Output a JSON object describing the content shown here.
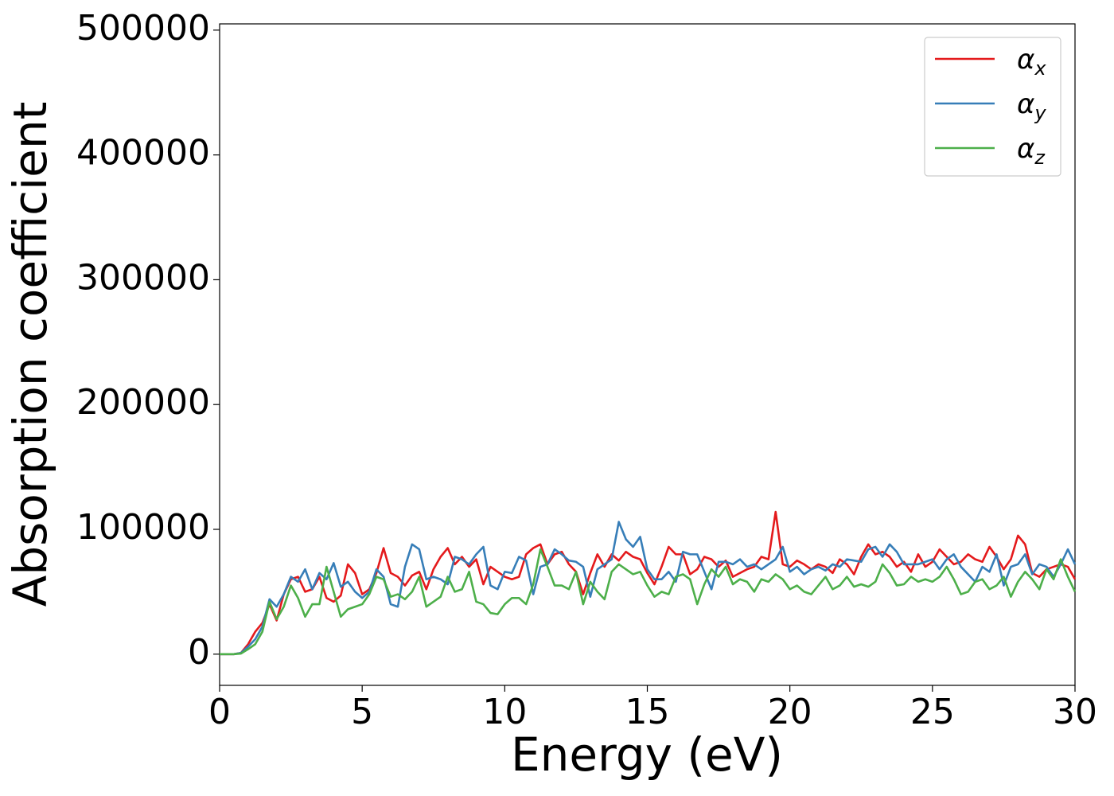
{
  "chart_data": {
    "type": "line",
    "xlabel": "Energy (eV)",
    "ylabel": "Absorption coefficient",
    "xlim": [
      0,
      30
    ],
    "ylim": [
      -25000,
      505000
    ],
    "xticks": [
      0,
      5,
      10,
      15,
      20,
      25,
      30
    ],
    "yticks": [
      0,
      100000,
      200000,
      300000,
      400000,
      500000
    ],
    "legend": "upper right",
    "grid": false,
    "x": [
      0,
      0.25,
      0.5,
      0.75,
      1,
      1.25,
      1.5,
      1.75,
      2,
      2.25,
      2.5,
      2.75,
      3,
      3.25,
      3.5,
      3.75,
      4,
      4.25,
      4.5,
      4.75,
      5,
      5.25,
      5.5,
      5.75,
      6,
      6.25,
      6.5,
      6.75,
      7,
      7.25,
      7.5,
      7.75,
      8,
      8.25,
      8.5,
      8.75,
      9,
      9.25,
      9.5,
      9.75,
      10,
      10.25,
      10.5,
      10.75,
      11,
      11.25,
      11.5,
      11.75,
      12,
      12.25,
      12.5,
      12.75,
      13,
      13.25,
      13.5,
      13.75,
      14,
      14.25,
      14.5,
      14.75,
      15,
      15.25,
      15.5,
      15.75,
      16,
      16.25,
      16.5,
      16.75,
      17,
      17.25,
      17.5,
      17.75,
      18,
      18.25,
      18.5,
      18.75,
      19,
      19.25,
      19.5,
      19.75,
      20,
      20.25,
      20.5,
      20.75,
      21,
      21.25,
      21.5,
      21.75,
      22,
      22.25,
      22.5,
      22.75,
      23,
      23.25,
      23.5,
      23.75,
      24,
      24.25,
      24.5,
      24.75,
      25,
      25.25,
      25.5,
      25.75,
      26,
      26.25,
      26.5,
      26.75,
      27,
      27.25,
      27.5,
      27.75,
      28,
      28.25,
      28.5,
      28.75,
      29,
      29.25,
      29.5,
      29.75,
      30
    ],
    "series": [
      {
        "name": "αx",
        "color": "#e41a1c",
        "values": [
          0,
          0,
          0,
          1000,
          8000,
          18000,
          25000,
          40000,
          27000,
          48000,
          60000,
          62000,
          50000,
          52000,
          62000,
          45000,
          42000,
          47000,
          72000,
          65000,
          48000,
          52000,
          65000,
          85000,
          65000,
          62000,
          55000,
          63000,
          66000,
          52000,
          68000,
          78000,
          85000,
          72000,
          78000,
          70000,
          76000,
          56000,
          70000,
          66000,
          62000,
          60000,
          62000,
          80000,
          85000,
          88000,
          72000,
          80000,
          82000,
          72000,
          66000,
          48000,
          65000,
          80000,
          70000,
          80000,
          75000,
          82000,
          78000,
          76000,
          65000,
          56000,
          70000,
          86000,
          80000,
          80000,
          64000,
          68000,
          78000,
          76000,
          70000,
          75000,
          62000,
          65000,
          68000,
          70000,
          78000,
          76000,
          114000,
          72000,
          70000,
          75000,
          72000,
          68000,
          72000,
          70000,
          65000,
          76000,
          72000,
          64000,
          78000,
          88000,
          80000,
          82000,
          78000,
          70000,
          74000,
          66000,
          80000,
          70000,
          74000,
          84000,
          78000,
          72000,
          74000,
          80000,
          76000,
          74000,
          86000,
          78000,
          68000,
          76000,
          95000,
          88000,
          65000,
          62000,
          68000,
          70000,
          72000,
          70000,
          60000
        ]
      },
      {
        "name": "αy",
        "color": "#377eb8",
        "values": [
          0,
          0,
          0,
          1000,
          6000,
          12000,
          22000,
          44000,
          38000,
          48000,
          62000,
          58000,
          68000,
          52000,
          65000,
          60000,
          73000,
          54000,
          58000,
          50000,
          45000,
          50000,
          68000,
          62000,
          40000,
          38000,
          70000,
          88000,
          84000,
          60000,
          62000,
          60000,
          56000,
          78000,
          76000,
          72000,
          80000,
          86000,
          55000,
          52000,
          66000,
          65000,
          78000,
          75000,
          48000,
          70000,
          72000,
          84000,
          80000,
          75000,
          74000,
          70000,
          46000,
          68000,
          72000,
          76000,
          106000,
          92000,
          86000,
          94000,
          68000,
          60000,
          60000,
          66000,
          58000,
          82000,
          80000,
          80000,
          66000,
          52000,
          74000,
          74000,
          72000,
          76000,
          70000,
          72000,
          68000,
          72000,
          76000,
          86000,
          66000,
          70000,
          64000,
          68000,
          70000,
          67000,
          72000,
          70000,
          76000,
          75000,
          74000,
          84000,
          86000,
          78000,
          88000,
          82000,
          72000,
          72000,
          72000,
          74000,
          76000,
          68000,
          76000,
          80000,
          70000,
          64000,
          58000,
          70000,
          66000,
          80000,
          55000,
          70000,
          72000,
          80000,
          64000,
          72000,
          70000,
          62000,
          72000,
          84000,
          72000
        ]
      },
      {
        "name": "αz",
        "color": "#4daf4a",
        "values": [
          0,
          0,
          0,
          500,
          4000,
          8000,
          18000,
          42000,
          28000,
          38000,
          55000,
          45000,
          30000,
          40000,
          40000,
          70000,
          50000,
          30000,
          36000,
          38000,
          40000,
          48000,
          62000,
          60000,
          46000,
          48000,
          44000,
          50000,
          62000,
          38000,
          42000,
          46000,
          62000,
          50000,
          52000,
          66000,
          42000,
          40000,
          33000,
          32000,
          40000,
          45000,
          45000,
          40000,
          56000,
          84000,
          70000,
          55000,
          55000,
          52000,
          66000,
          40000,
          58000,
          50000,
          44000,
          66000,
          72000,
          68000,
          64000,
          66000,
          55000,
          46000,
          50000,
          48000,
          62000,
          64000,
          60000,
          40000,
          56000,
          68000,
          62000,
          70000,
          56000,
          60000,
          58000,
          50000,
          60000,
          58000,
          64000,
          60000,
          52000,
          55000,
          50000,
          48000,
          55000,
          62000,
          52000,
          55000,
          62000,
          54000,
          56000,
          54000,
          58000,
          72000,
          65000,
          55000,
          56000,
          62000,
          58000,
          60000,
          58000,
          62000,
          70000,
          60000,
          48000,
          50000,
          58000,
          60000,
          52000,
          55000,
          62000,
          46000,
          58000,
          66000,
          60000,
          52000,
          68000,
          60000,
          76000,
          62000,
          50000
        ]
      }
    ]
  }
}
